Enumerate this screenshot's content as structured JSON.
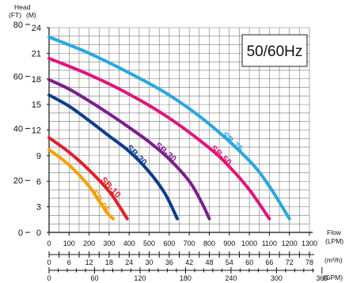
{
  "chart_data": {
    "type": "line",
    "annotation": "50/60Hz",
    "y_title": "Head",
    "y_units_ft": "(FT)",
    "y_units_m": "(M)",
    "x_title": "Flow",
    "x_units_lpm": "(LPM)",
    "x_units_m3h": "(m³/h)",
    "x_units_gpm": "(GPM)",
    "y_ticks_m": [
      "0",
      "3",
      "6",
      "9",
      "12",
      "15",
      "18",
      "21",
      "24"
    ],
    "y_ticks_ft": [
      "0",
      "20",
      "40",
      "60",
      "80"
    ],
    "x_ticks_lpm": [
      "0",
      "100",
      "200",
      "300",
      "400",
      "500",
      "600",
      "700",
      "800",
      "900",
      "1000",
      "1100",
      "1200",
      "1300"
    ],
    "x_ticks_m3h": [
      "0",
      "6",
      "12",
      "18",
      "24",
      "30",
      "36",
      "42",
      "48",
      "54",
      "60",
      "66",
      "72",
      "78"
    ],
    "x_ticks_gpm": [
      "0",
      "60",
      "120",
      "180",
      "240",
      "300",
      "360"
    ],
    "ylim_m": [
      0,
      24
    ],
    "xlim_lpm": [
      0,
      1300
    ],
    "grid": true,
    "series": [
      {
        "name": "SB-05",
        "color": "#f5a000",
        "x": [
          0,
          100,
          200,
          250,
          290,
          320
        ],
        "y": [
          9.7,
          7.9,
          5.4,
          3.7,
          2.3,
          1.6
        ]
      },
      {
        "name": "SB-10",
        "color": "#e0202a",
        "x": [
          0,
          100,
          200,
          300,
          350,
          390
        ],
        "y": [
          11.1,
          9.4,
          7.3,
          4.8,
          3.1,
          1.6
        ]
      },
      {
        "name": "SB-20",
        "color": "#0d3c8c",
        "x": [
          0,
          100,
          200,
          300,
          400,
          500,
          580,
          640
        ],
        "y": [
          16.1,
          14.8,
          13.1,
          11.3,
          9.5,
          7.1,
          4.5,
          1.6
        ]
      },
      {
        "name": "SB-30",
        "color": "#7a1f8c",
        "x": [
          0,
          100,
          200,
          300,
          400,
          500,
          600,
          700,
          760,
          800
        ],
        "y": [
          17.9,
          16.8,
          15.4,
          13.9,
          12.3,
          10.6,
          8.6,
          6.0,
          3.6,
          1.6
        ]
      },
      {
        "name": "SB-50",
        "color": "#e0157a",
        "x": [
          0,
          200,
          400,
          600,
          800,
          900,
          1000,
          1100
        ],
        "y": [
          20.4,
          18.5,
          16.2,
          13.4,
          9.9,
          7.7,
          5.0,
          1.6
        ]
      },
      {
        "name": "SB-75",
        "color": "#29a8e0",
        "x": [
          0,
          200,
          400,
          600,
          800,
          1000,
          1100,
          1200
        ],
        "y": [
          22.9,
          21.0,
          18.7,
          16.1,
          12.7,
          8.4,
          5.4,
          1.6
        ]
      }
    ]
  }
}
